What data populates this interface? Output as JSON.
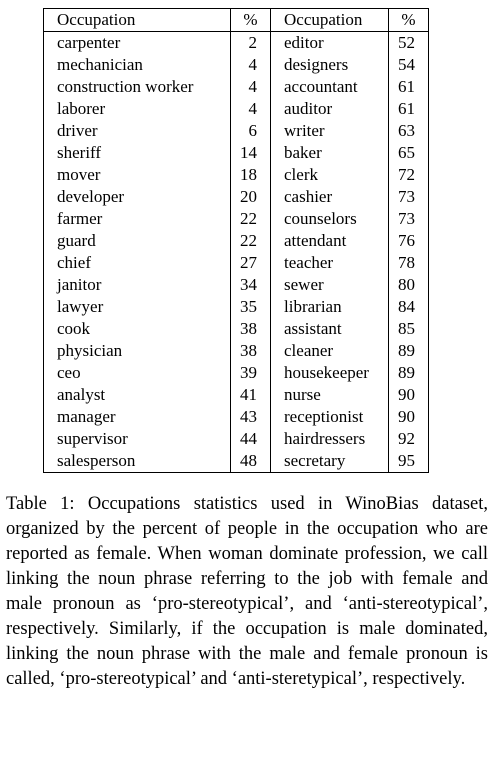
{
  "table": {
    "headers": {
      "occupation_left": "Occupation",
      "percent_left": "%",
      "occupation_right": "Occupation",
      "percent_right": "%"
    },
    "rows": [
      {
        "left_occupation": "carpenter",
        "left_percent": "2",
        "right_occupation": "editor",
        "right_percent": "52"
      },
      {
        "left_occupation": "mechanician",
        "left_percent": "4",
        "right_occupation": "designers",
        "right_percent": "54"
      },
      {
        "left_occupation": "construction worker",
        "left_percent": "4",
        "right_occupation": "accountant",
        "right_percent": "61"
      },
      {
        "left_occupation": "laborer",
        "left_percent": "4",
        "right_occupation": "auditor",
        "right_percent": "61"
      },
      {
        "left_occupation": "driver",
        "left_percent": "6",
        "right_occupation": "writer",
        "right_percent": "63"
      },
      {
        "left_occupation": "sheriff",
        "left_percent": "14",
        "right_occupation": "baker",
        "right_percent": "65"
      },
      {
        "left_occupation": "mover",
        "left_percent": "18",
        "right_occupation": "clerk",
        "right_percent": "72"
      },
      {
        "left_occupation": "developer",
        "left_percent": "20",
        "right_occupation": "cashier",
        "right_percent": "73"
      },
      {
        "left_occupation": "farmer",
        "left_percent": "22",
        "right_occupation": "counselors",
        "right_percent": "73"
      },
      {
        "left_occupation": "guard",
        "left_percent": "22",
        "right_occupation": "attendant",
        "right_percent": "76"
      },
      {
        "left_occupation": "chief",
        "left_percent": "27",
        "right_occupation": "teacher",
        "right_percent": "78"
      },
      {
        "left_occupation": "janitor",
        "left_percent": "34",
        "right_occupation": "sewer",
        "right_percent": "80"
      },
      {
        "left_occupation": "lawyer",
        "left_percent": "35",
        "right_occupation": "librarian",
        "right_percent": "84"
      },
      {
        "left_occupation": "cook",
        "left_percent": "38",
        "right_occupation": "assistant",
        "right_percent": "85"
      },
      {
        "left_occupation": "physician",
        "left_percent": "38",
        "right_occupation": "cleaner",
        "right_percent": "89"
      },
      {
        "left_occupation": "ceo",
        "left_percent": "39",
        "right_occupation": "housekeeper",
        "right_percent": "89"
      },
      {
        "left_occupation": "analyst",
        "left_percent": "41",
        "right_occupation": "nurse",
        "right_percent": "90"
      },
      {
        "left_occupation": "manager",
        "left_percent": "43",
        "right_occupation": "receptionist",
        "right_percent": "90"
      },
      {
        "left_occupation": "supervisor",
        "left_percent": "44",
        "right_occupation": "hairdressers",
        "right_percent": "92"
      },
      {
        "left_occupation": "salesperson",
        "left_percent": "48",
        "right_occupation": "secretary",
        "right_percent": "95"
      }
    ]
  },
  "caption": {
    "text": "Table 1: Occupations statistics used in WinoBias dataset, organized by the percent of people in the occupation who are reported as female. When woman dominate profession, we call linking the noun phrase referring to the job with female and male pronoun as ‘pro-stereotypical’, and ‘anti-stereotypical’, respectively. Similarly, if the occupation is male dominated, linking the noun phrase with the male and female pronoun is called, ‘pro-stereotypical’ and ‘anti-steretypical’, respectively."
  }
}
